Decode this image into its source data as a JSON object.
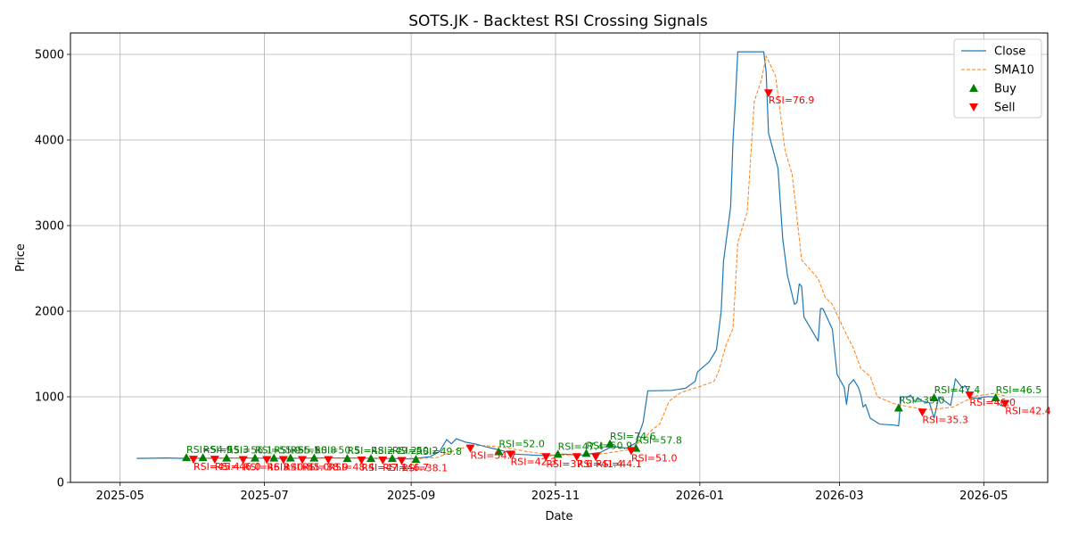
{
  "chart_data": {
    "type": "line",
    "title": "SOTS.JK - Backtest RSI Crossing Signals",
    "xlabel": "Date",
    "ylabel": "Price",
    "x_range": [
      "2025-04-10",
      "2026-05-28"
    ],
    "ylim": [
      0,
      5250
    ],
    "grid": true,
    "legend_position": "top-right",
    "x_ticks": [
      "2025-05",
      "2025-07",
      "2025-09",
      "2025-11",
      "2026-01",
      "2026-03",
      "2026-05"
    ],
    "y_ticks": [
      0,
      1000,
      2000,
      3000,
      4000,
      5000
    ],
    "colors": {
      "close": "#1f77b4",
      "sma": "#ff7f0e",
      "buy": "#008000",
      "sell": "#ff0000"
    },
    "legend": [
      {
        "key": "close",
        "label": "Close"
      },
      {
        "key": "sma",
        "label": "SMA10"
      },
      {
        "key": "buy",
        "label": "Buy"
      },
      {
        "key": "sell",
        "label": "Sell"
      }
    ],
    "series": [
      {
        "name": "Close",
        "style": "solid",
        "points": [
          [
            "2025-05-08",
            280
          ],
          [
            "2025-05-20",
            285
          ],
          [
            "2025-05-29",
            280
          ],
          [
            "2025-06-10",
            282
          ],
          [
            "2025-06-24",
            285
          ],
          [
            "2025-07-08",
            280
          ],
          [
            "2025-07-22",
            285
          ],
          [
            "2025-08-05",
            285
          ],
          [
            "2025-08-20",
            280
          ],
          [
            "2025-09-01",
            275
          ],
          [
            "2025-09-09",
            300
          ],
          [
            "2025-09-13",
            360
          ],
          [
            "2025-09-16",
            500
          ],
          [
            "2025-09-18",
            450
          ],
          [
            "2025-09-20",
            510
          ],
          [
            "2025-09-24",
            470
          ],
          [
            "2025-09-28",
            450
          ],
          [
            "2025-10-02",
            420
          ],
          [
            "2025-10-08",
            380
          ],
          [
            "2025-10-15",
            330
          ],
          [
            "2025-10-22",
            320
          ],
          [
            "2025-10-29",
            310
          ],
          [
            "2025-11-04",
            330
          ],
          [
            "2025-11-12",
            320
          ],
          [
            "2025-11-20",
            350
          ],
          [
            "2025-11-25",
            420
          ],
          [
            "2025-12-01",
            400
          ],
          [
            "2025-12-05",
            460
          ],
          [
            "2025-12-08",
            700
          ],
          [
            "2025-12-10",
            1070
          ],
          [
            "2025-12-20",
            1075
          ],
          [
            "2025-12-26",
            1100
          ],
          [
            "2025-12-30",
            1180
          ],
          [
            "2025-12-31",
            1290
          ],
          [
            "2026-01-05",
            1410
          ],
          [
            "2026-01-08",
            1550
          ],
          [
            "2026-01-10",
            2000
          ],
          [
            "2026-01-11",
            2580
          ],
          [
            "2026-01-14",
            3220
          ],
          [
            "2026-01-15",
            4000
          ],
          [
            "2026-01-16",
            4460
          ],
          [
            "2026-01-17",
            5030
          ],
          [
            "2026-01-28",
            5030
          ],
          [
            "2026-01-29",
            4800
          ],
          [
            "2026-01-30",
            4080
          ],
          [
            "2026-02-03",
            3670
          ],
          [
            "2026-02-05",
            2850
          ],
          [
            "2026-02-07",
            2420
          ],
          [
            "2026-02-10",
            2080
          ],
          [
            "2026-02-11",
            2100
          ],
          [
            "2026-02-12",
            2320
          ],
          [
            "2026-02-13",
            2290
          ],
          [
            "2026-02-14",
            1930
          ],
          [
            "2026-02-20",
            1650
          ],
          [
            "2026-02-21",
            2030
          ],
          [
            "2026-02-22",
            2030
          ],
          [
            "2026-02-26",
            1790
          ],
          [
            "2026-02-28",
            1260
          ],
          [
            "2026-03-03",
            1110
          ],
          [
            "2026-03-04",
            910
          ],
          [
            "2026-03-05",
            1140
          ],
          [
            "2026-03-07",
            1200
          ],
          [
            "2026-03-09",
            1110
          ],
          [
            "2026-03-10",
            1020
          ],
          [
            "2026-03-11",
            880
          ],
          [
            "2026-03-12",
            910
          ],
          [
            "2026-03-14",
            750
          ],
          [
            "2026-03-18",
            680
          ],
          [
            "2026-03-24",
            670
          ],
          [
            "2026-03-26",
            660
          ],
          [
            "2026-03-27",
            1000
          ],
          [
            "2026-03-30",
            1000
          ],
          [
            "2026-03-31",
            1020
          ],
          [
            "2026-04-02",
            940
          ],
          [
            "2026-04-03",
            990
          ],
          [
            "2026-04-05",
            950
          ],
          [
            "2026-04-08",
            930
          ],
          [
            "2026-04-10",
            750
          ],
          [
            "2026-04-12",
            1000
          ],
          [
            "2026-04-17",
            900
          ],
          [
            "2026-04-19",
            1210
          ],
          [
            "2026-04-22",
            1100
          ],
          [
            "2026-04-23",
            1130
          ],
          [
            "2026-04-24",
            1090
          ],
          [
            "2026-04-25",
            1000
          ],
          [
            "2026-04-28",
            980
          ],
          [
            "2026-05-02",
            1000
          ],
          [
            "2026-05-05",
            1000
          ],
          [
            "2026-05-08",
            900
          ],
          [
            "2026-05-10",
            890
          ]
        ]
      },
      {
        "name": "SMA10",
        "style": "dashed",
        "points": [
          [
            "2025-05-28",
            282
          ],
          [
            "2025-06-20",
            283
          ],
          [
            "2025-07-15",
            283
          ],
          [
            "2025-08-10",
            282
          ],
          [
            "2025-09-05",
            280
          ],
          [
            "2025-09-12",
            290
          ],
          [
            "2025-09-20",
            380
          ],
          [
            "2025-09-26",
            430
          ],
          [
            "2025-10-02",
            430
          ],
          [
            "2025-10-10",
            410
          ],
          [
            "2025-10-20",
            360
          ],
          [
            "2025-10-30",
            320
          ],
          [
            "2025-11-10",
            320
          ],
          [
            "2025-11-22",
            340
          ],
          [
            "2025-12-02",
            380
          ],
          [
            "2025-12-08",
            500
          ],
          [
            "2025-12-12",
            620
          ],
          [
            "2025-12-15",
            680
          ],
          [
            "2025-12-19",
            950
          ],
          [
            "2025-12-24",
            1050
          ],
          [
            "2026-01-01",
            1120
          ],
          [
            "2026-01-07",
            1180
          ],
          [
            "2026-01-09",
            1300
          ],
          [
            "2026-01-12",
            1600
          ],
          [
            "2026-01-15",
            1800
          ],
          [
            "2026-01-17",
            2800
          ],
          [
            "2026-01-21",
            3160
          ],
          [
            "2026-01-24",
            4450
          ],
          [
            "2026-01-27",
            4700
          ],
          [
            "2026-01-29",
            4980
          ],
          [
            "2026-02-02",
            4750
          ],
          [
            "2026-02-06",
            3880
          ],
          [
            "2026-02-09",
            3600
          ],
          [
            "2026-02-13",
            2600
          ],
          [
            "2026-02-20",
            2380
          ],
          [
            "2026-02-23",
            2160
          ],
          [
            "2026-02-26",
            2080
          ],
          [
            "2026-03-03",
            1780
          ],
          [
            "2026-03-07",
            1560
          ],
          [
            "2026-03-10",
            1330
          ],
          [
            "2026-03-14",
            1240
          ],
          [
            "2026-03-17",
            1000
          ],
          [
            "2026-03-24",
            920
          ],
          [
            "2026-03-31",
            880
          ],
          [
            "2026-04-07",
            850
          ],
          [
            "2026-04-12",
            860
          ],
          [
            "2026-04-18",
            880
          ],
          [
            "2026-04-23",
            950
          ],
          [
            "2026-04-28",
            1010
          ],
          [
            "2026-05-05",
            1040
          ],
          [
            "2026-05-10",
            1010
          ]
        ]
      }
    ],
    "buy_signals": [
      {
        "date": "2025-05-29",
        "price": 290,
        "label": "RSI=54.9"
      },
      {
        "date": "2025-06-05",
        "price": 290,
        "label": "RSI=55.3"
      },
      {
        "date": "2025-06-15",
        "price": 285,
        "label": "RSI=56.1"
      },
      {
        "date": "2025-06-27",
        "price": 285,
        "label": "RSI=55.9"
      },
      {
        "date": "2025-07-05",
        "price": 285,
        "label": "RSI=55.1"
      },
      {
        "date": "2025-07-12",
        "price": 285,
        "label": "RSI=50.8"
      },
      {
        "date": "2025-07-22",
        "price": 285,
        "label": "RSI=50.5"
      },
      {
        "date": "2025-08-05",
        "price": 280,
        "label": "RSI=48.2"
      },
      {
        "date": "2025-08-15",
        "price": 280,
        "label": "RSI=49.2"
      },
      {
        "date": "2025-08-24",
        "price": 280,
        "label": "RSI=50.2"
      },
      {
        "date": "2025-09-03",
        "price": 270,
        "label": "RSI=49.8"
      },
      {
        "date": "2025-10-08",
        "price": 360,
        "label": "RSI=52.0"
      },
      {
        "date": "2025-11-02",
        "price": 330,
        "label": "RSI=47.4"
      },
      {
        "date": "2025-11-14",
        "price": 340,
        "label": "RSI=50.9"
      },
      {
        "date": "2025-11-24",
        "price": 450,
        "label": "RSI=74.6"
      },
      {
        "date": "2025-12-05",
        "price": 400,
        "label": "RSI=57.8"
      },
      {
        "date": "2026-03-26",
        "price": 870,
        "label": "RSI=39.0"
      },
      {
        "date": "2026-04-10",
        "price": 990,
        "label": "RSI=47.4"
      },
      {
        "date": "2026-05-06",
        "price": 990,
        "label": "RSI=46.5"
      }
    ],
    "sell_signals": [
      {
        "date": "2025-06-01",
        "price": 270,
        "label": "RSI=45.4"
      },
      {
        "date": "2025-06-10",
        "price": 270,
        "label": "RSI=46.0"
      },
      {
        "date": "2025-06-22",
        "price": 265,
        "label": "RSI=46.3"
      },
      {
        "date": "2025-07-02",
        "price": 265,
        "label": "RSI=40.5"
      },
      {
        "date": "2025-07-09",
        "price": 265,
        "label": "RSI=45.0"
      },
      {
        "date": "2025-07-17",
        "price": 265,
        "label": "RSI=38.9"
      },
      {
        "date": "2025-07-28",
        "price": 265,
        "label": "RSI=48.4"
      },
      {
        "date": "2025-08-11",
        "price": 260,
        "label": "RSI=47.1"
      },
      {
        "date": "2025-08-20",
        "price": 260,
        "label": "RSI=46.7"
      },
      {
        "date": "2025-08-28",
        "price": 255,
        "label": "RSI=38.1"
      },
      {
        "date": "2025-09-26",
        "price": 400,
        "label": "RSI=54.7"
      },
      {
        "date": "2025-10-13",
        "price": 330,
        "label": "RSI=42.3"
      },
      {
        "date": "2025-10-28",
        "price": 300,
        "label": "RSI=37.6"
      },
      {
        "date": "2025-11-10",
        "price": 300,
        "label": "RSI=41.4"
      },
      {
        "date": "2025-11-18",
        "price": 300,
        "label": "RSI=44.1"
      },
      {
        "date": "2025-12-03",
        "price": 370,
        "label": "RSI=51.0"
      },
      {
        "date": "2026-01-30",
        "price": 4550,
        "label": "RSI=76.9"
      },
      {
        "date": "2026-04-05",
        "price": 820,
        "label": "RSI=35.3"
      },
      {
        "date": "2026-04-25",
        "price": 1020,
        "label": "RSI=46.0"
      },
      {
        "date": "2026-05-10",
        "price": 920,
        "label": "RSI=42.4"
      }
    ]
  }
}
